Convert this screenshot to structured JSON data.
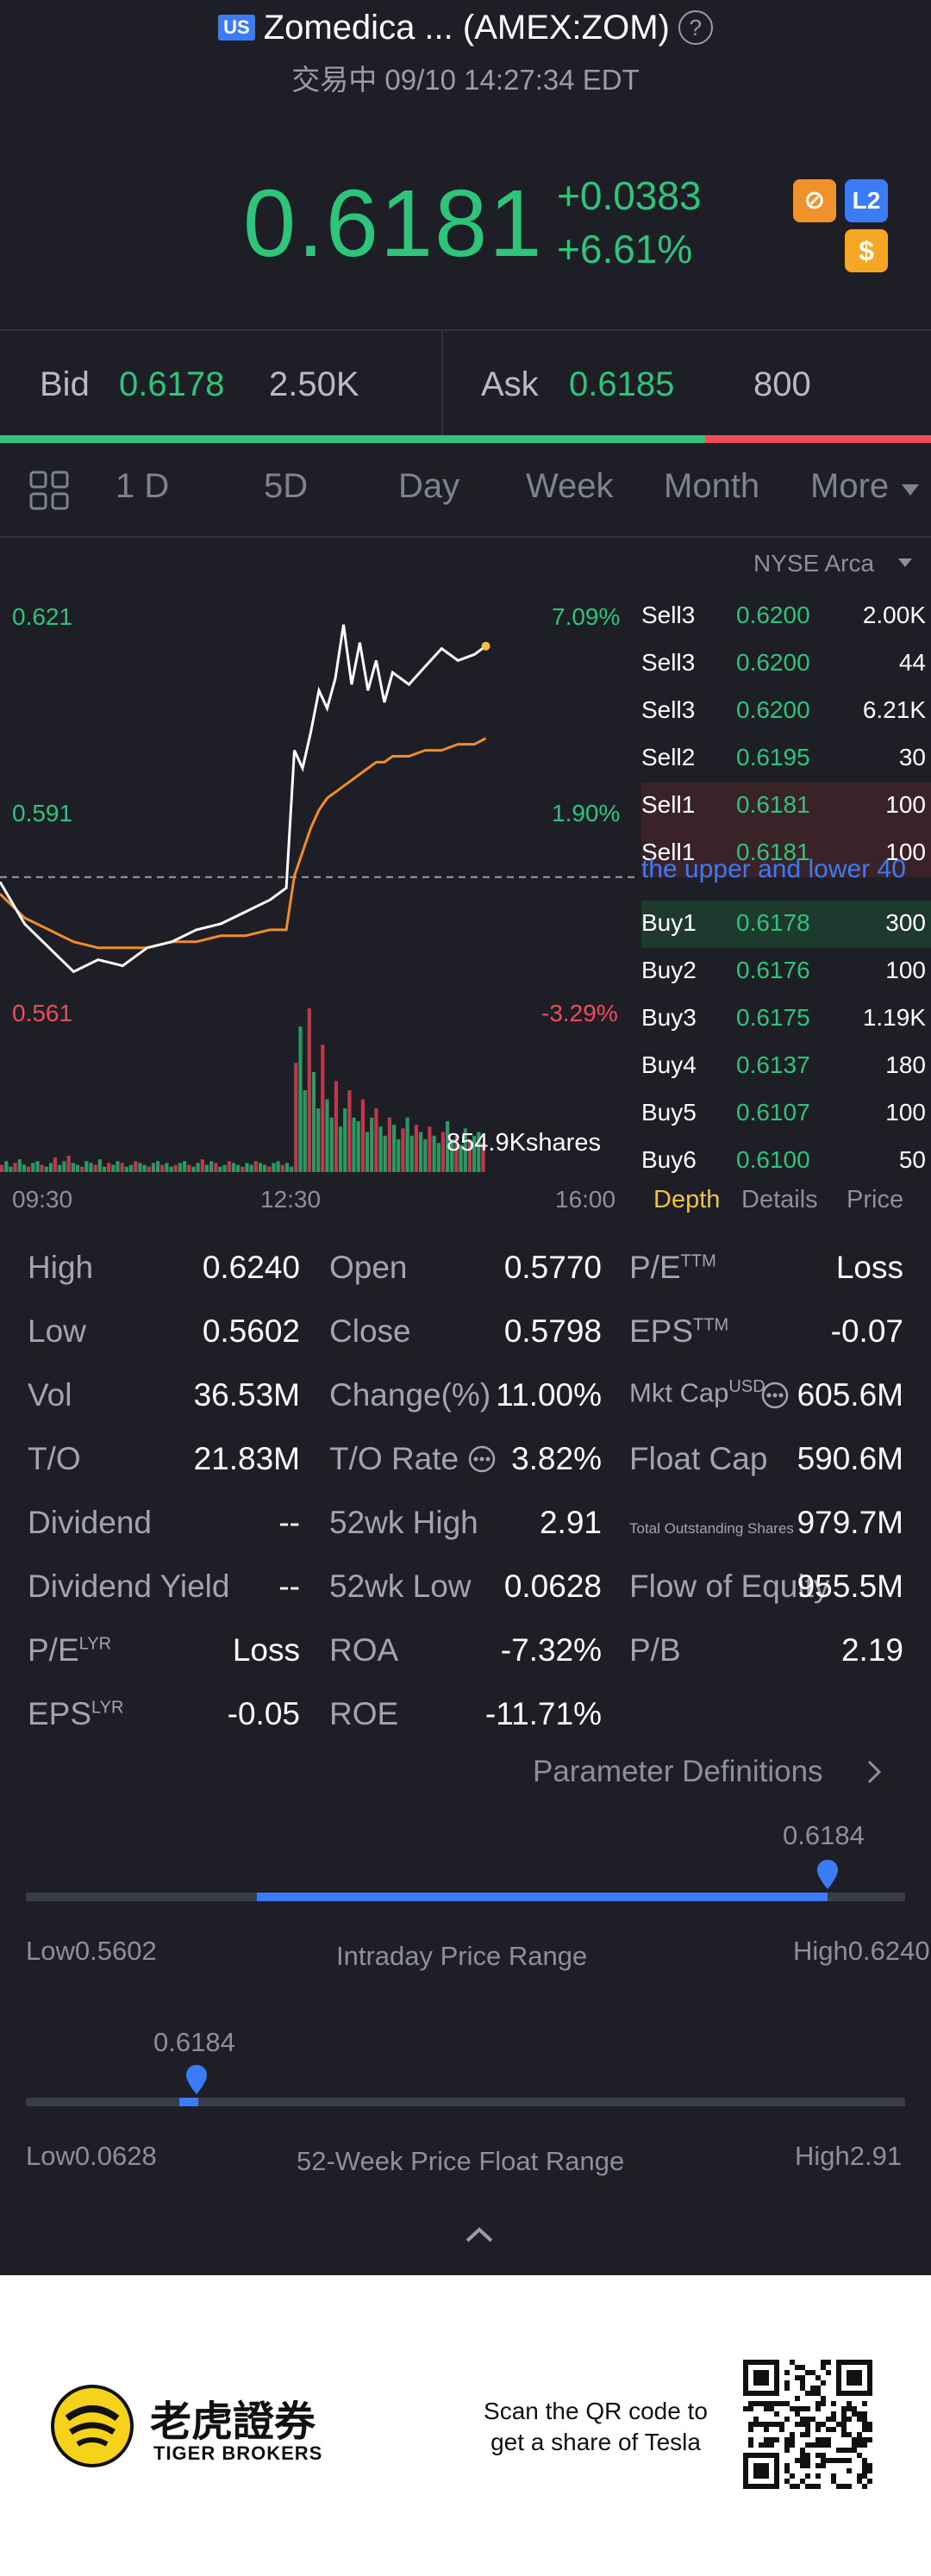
{
  "header": {
    "market_badge": "US",
    "title": "Zomedica ... (AMEX:ZOM)",
    "help_glyph": "?",
    "status": "交易中 09/10 14:27:34 EDT"
  },
  "quote": {
    "price": "0.6181",
    "change": "+0.0383",
    "change_pct": "+6.61%",
    "badges": [
      "⊘",
      "L2",
      "$"
    ]
  },
  "bid_ask": {
    "bid_label": "Bid",
    "bid_price": "0.6178",
    "bid_volume": "2.50K",
    "ask_label": "Ask",
    "ask_price": "0.6185",
    "ask_volume": "800",
    "bid_ratio": 0.757
  },
  "tabs": {
    "items": [
      "1 D",
      "5D",
      "Day",
      "Week",
      "Month",
      "More"
    ],
    "active": "1 D",
    "layout_icon": "grid-icon"
  },
  "chart_data": {
    "type": "line",
    "y_labels_left": [
      "0.621",
      "0.591",
      "0.561"
    ],
    "y_labels_right": [
      "7.09%",
      "1.90%",
      "-3.29%"
    ],
    "x_labels": [
      "09:30",
      "12:30",
      "16:00"
    ],
    "volume_label": "854.9Kshares",
    "ylim": [
      0.555,
      0.627
    ],
    "prev_close": 0.5798,
    "series": [
      {
        "x": [
          "09:30",
          "09:45",
          "10:00",
          "10:15",
          "10:30",
          "10:45",
          "11:00",
          "11:15",
          "11:30",
          "11:45",
          "12:00",
          "12:15",
          "12:25",
          "12:30",
          "12:35",
          "12:40",
          "12:45",
          "12:50",
          "12:55",
          "13:00",
          "13:05",
          "13:10",
          "13:15",
          "13:20",
          "13:25",
          "13:30",
          "13:40",
          "13:50",
          "14:00",
          "14:10",
          "14:20",
          "14:27"
        ],
        "values": [
          0.579,
          0.572,
          0.568,
          0.564,
          0.566,
          0.565,
          0.568,
          0.569,
          0.571,
          0.572,
          0.574,
          0.576,
          0.578,
          0.601,
          0.598,
          0.604,
          0.611,
          0.608,
          0.613,
          0.622,
          0.612,
          0.619,
          0.611,
          0.616,
          0.609,
          0.614,
          0.612,
          0.615,
          0.618,
          0.616,
          0.617,
          0.6184
        ]
      },
      {
        "x": [
          "09:30",
          "09:45",
          "10:00",
          "10:15",
          "10:30",
          "10:45",
          "11:00",
          "11:15",
          "11:30",
          "11:45",
          "12:00",
          "12:15",
          "12:25",
          "12:30",
          "12:35",
          "12:40",
          "12:45",
          "12:50",
          "12:55",
          "13:00",
          "13:05",
          "13:10",
          "13:15",
          "13:20",
          "13:25",
          "13:30",
          "13:40",
          "13:50",
          "14:00",
          "14:10",
          "14:20",
          "14:27"
        ],
        "values": [
          0.577,
          0.573,
          0.571,
          0.569,
          0.568,
          0.568,
          0.568,
          0.569,
          0.569,
          0.57,
          0.57,
          0.571,
          0.571,
          0.58,
          0.584,
          0.588,
          0.591,
          0.593,
          0.594,
          0.595,
          0.596,
          0.597,
          0.598,
          0.599,
          0.599,
          0.6,
          0.6,
          0.601,
          0.601,
          0.602,
          0.602,
          0.603
        ]
      }
    ],
    "volume": [
      4,
      6,
      3,
      5,
      7,
      4,
      3,
      5,
      6,
      4,
      3,
      5,
      8,
      4,
      6,
      9,
      5,
      4,
      3,
      6,
      5,
      4,
      7,
      3,
      5,
      4,
      6,
      5,
      3,
      4,
      6,
      5,
      4,
      3,
      5,
      6,
      4,
      5,
      3,
      4,
      5,
      6,
      4,
      3,
      5,
      7,
      4,
      6,
      5,
      3,
      4,
      6,
      5,
      4,
      3,
      5,
      4,
      6,
      5,
      4,
      3,
      5,
      6,
      4,
      5,
      3,
      60,
      80,
      45,
      90,
      55,
      35,
      70,
      40,
      30,
      50,
      25,
      35,
      45,
      30,
      28,
      40,
      22,
      30,
      35,
      25,
      20,
      30,
      26,
      18,
      24,
      30,
      20,
      26,
      22,
      18,
      25,
      20,
      16,
      22,
      28,
      18,
      20,
      15,
      24,
      18,
      20,
      22,
      16
    ]
  },
  "order_book": {
    "exchange": "NYSE Arca",
    "sells": [
      {
        "label": "Sell3",
        "price": "0.6200",
        "size": "2.00K"
      },
      {
        "label": "Sell3",
        "price": "0.6200",
        "size": "44"
      },
      {
        "label": "Sell3",
        "price": "0.6200",
        "size": "6.21K"
      },
      {
        "label": "Sell2",
        "price": "0.6195",
        "size": "30"
      },
      {
        "label": "Sell1",
        "price": "0.6181",
        "size": "100"
      },
      {
        "label": "Sell1",
        "price": "0.6181",
        "size": "100"
      }
    ],
    "notice": "the upper and lower 40",
    "buys": [
      {
        "label": "Buy1",
        "price": "0.6178",
        "size": "300"
      },
      {
        "label": "Buy2",
        "price": "0.6176",
        "size": "100"
      },
      {
        "label": "Buy3",
        "price": "0.6175",
        "size": "1.19K"
      },
      {
        "label": "Buy4",
        "price": "0.6137",
        "size": "180"
      },
      {
        "label": "Buy5",
        "price": "0.6107",
        "size": "100"
      },
      {
        "label": "Buy6",
        "price": "0.6100",
        "size": "50"
      }
    ],
    "tabs": [
      "Depth",
      "Details",
      "Price"
    ],
    "active_tab": "Depth"
  },
  "stats": {
    "col1": [
      {
        "label": "High",
        "value": "0.6240"
      },
      {
        "label": "Low",
        "value": "0.5602"
      },
      {
        "label": "Vol",
        "value": "36.53M"
      },
      {
        "label": "T/O",
        "value": "21.83M"
      },
      {
        "label": "Dividend",
        "value": "--"
      },
      {
        "label": "Dividend Yield",
        "value": "--"
      },
      {
        "label": "P/E",
        "sup": "LYR",
        "value": "Loss"
      },
      {
        "label": "EPS",
        "sup": "LYR",
        "value": "-0.05"
      }
    ],
    "col2": [
      {
        "label": "Open",
        "value": "0.5770"
      },
      {
        "label": "Close",
        "value": "0.5798"
      },
      {
        "label": "Change(%)",
        "value": "11.00%"
      },
      {
        "label": "T/O Rate",
        "value": "3.82%"
      },
      {
        "label": "52wk High",
        "value": "2.91"
      },
      {
        "label": "52wk Low",
        "value": "0.0628"
      },
      {
        "label": "ROA",
        "value": "-7.32%"
      },
      {
        "label": "ROE",
        "value": "-11.71%"
      }
    ],
    "col3": [
      {
        "label": "P/E",
        "sup": "TTM",
        "value": "Loss"
      },
      {
        "label": "EPS",
        "sup": "TTM",
        "value": "-0.07"
      },
      {
        "label": "Mkt Cap",
        "sup": "USD",
        "value": "605.6M"
      },
      {
        "label": "Float Cap",
        "value": "590.6M"
      },
      {
        "label": "Total Outstanding Shares",
        "value": "979.7M"
      },
      {
        "label": "Flow of Equity",
        "value": "955.5M"
      },
      {
        "label": "P/B",
        "value": "2.19"
      }
    ],
    "param_link": "Parameter Definitions"
  },
  "intraday_range": {
    "current": "0.6184",
    "low_label": "Low",
    "low": "0.5602",
    "high_label": "High",
    "high": "0.6240",
    "title": "Intraday Price Range",
    "fill_start": 0.27,
    "position": 1.0
  },
  "week52_range": {
    "current": "0.6184",
    "low_label": "Low",
    "low": "0.0628",
    "high_label": "High",
    "high": "2.91",
    "title": "52-Week Price Float Range",
    "position": 0.19
  },
  "footer": {
    "brand_cn": "老虎證券",
    "brand_en": "TIGER BROKERS",
    "qr_text_1": "Scan the QR code to",
    "qr_text_2": "get a share of Tesla"
  },
  "colors": {
    "up": "#2ec57a",
    "down": "#f04b5a",
    "accent": "#3b7cf6",
    "highlight": "#f5c33b"
  }
}
